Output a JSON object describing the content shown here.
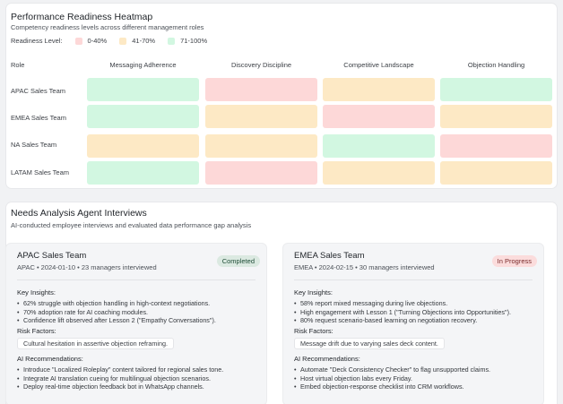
{
  "heatmap": {
    "title": "Performance Readiness Heatmap",
    "subtitle": "Competency readiness levels across different management roles",
    "legend": {
      "label": "Readiness Level:",
      "items": [
        {
          "label": "0-40%",
          "color": "#fdd8d8"
        },
        {
          "label": "41-70%",
          "color": "#fde9c5"
        },
        {
          "label": "71-100%",
          "color": "#d2f7e1"
        }
      ]
    },
    "role_header": "Role",
    "columns": [
      "Messaging Adherence",
      "Discovery Discipline",
      "Competitive Landscape",
      "Objection Handling"
    ],
    "rows": [
      {
        "team": "APAC Sales Team",
        "levels": [
          "high",
          "low",
          "mid",
          "high"
        ]
      },
      {
        "team": "EMEA Sales Team",
        "levels": [
          "high",
          "mid",
          "low",
          "mid"
        ]
      },
      {
        "team": "NA Sales Team",
        "levels": [
          "mid",
          "mid",
          "high",
          "low"
        ]
      },
      {
        "team": "LATAM Sales Team",
        "levels": [
          "high",
          "low",
          "mid",
          "mid"
        ]
      }
    ],
    "colors": {
      "low": "#fdd8d8",
      "mid": "#fde9c5",
      "high": "#d2f7e1"
    }
  },
  "analysis": {
    "title": "Needs Analysis Agent Interviews",
    "subtitle": "AI-conducted employee interviews and evaluated data performance gap analysis",
    "teams": [
      {
        "name": "APAC Sales Team",
        "meta": "APAC • 2024-01-10 • 23 managers interviewed",
        "status": "Completed",
        "status_bg": "#dbe9e1",
        "status_fg": "#1e4d36",
        "insights_label": "Key Insights:",
        "insights": [
          "62% struggle with objection handling in high-context negotiations.",
          "70% adoption rate for AI coaching modules.",
          "Confidence lift observed after Lesson 2 (\"Empathy Conversations\")."
        ],
        "risk_label": "Risk Factors:",
        "risk": "Cultural hesitation in assertive objection reframing.",
        "recs_label": "AI Recommendations:",
        "recs": [
          "Introduce \"Localized Roleplay\" content tailored for regional sales tone.",
          "Integrate AI translation cueing for multilingual objection scenarios.",
          "Deploy real-time objection feedback bot in WhatsApp channels."
        ]
      },
      {
        "name": "EMEA Sales Team",
        "meta": "EMEA • 2024-02-15 • 30 managers interviewed",
        "status": "In Progress",
        "status_bg": "#fbdcdc",
        "status_fg": "#7a2a2a",
        "insights_label": "Key Insights:",
        "insights": [
          "58% report mixed messaging during live objections.",
          "High engagement with Lesson 1 (\"Turning Objections into Opportunities\").",
          "80% request scenario-based learning on negotiation recovery."
        ],
        "risk_label": "Risk Factors:",
        "risk": "Message drift due to varying sales deck content.",
        "recs_label": "AI Recommendations:",
        "recs": [
          "Automate \"Deck Consistency Checker\" to flag unsupported claims.",
          "Host virtual objection labs every Friday.",
          "Embed objection-response checklist into CRM workflows."
        ]
      }
    ]
  }
}
